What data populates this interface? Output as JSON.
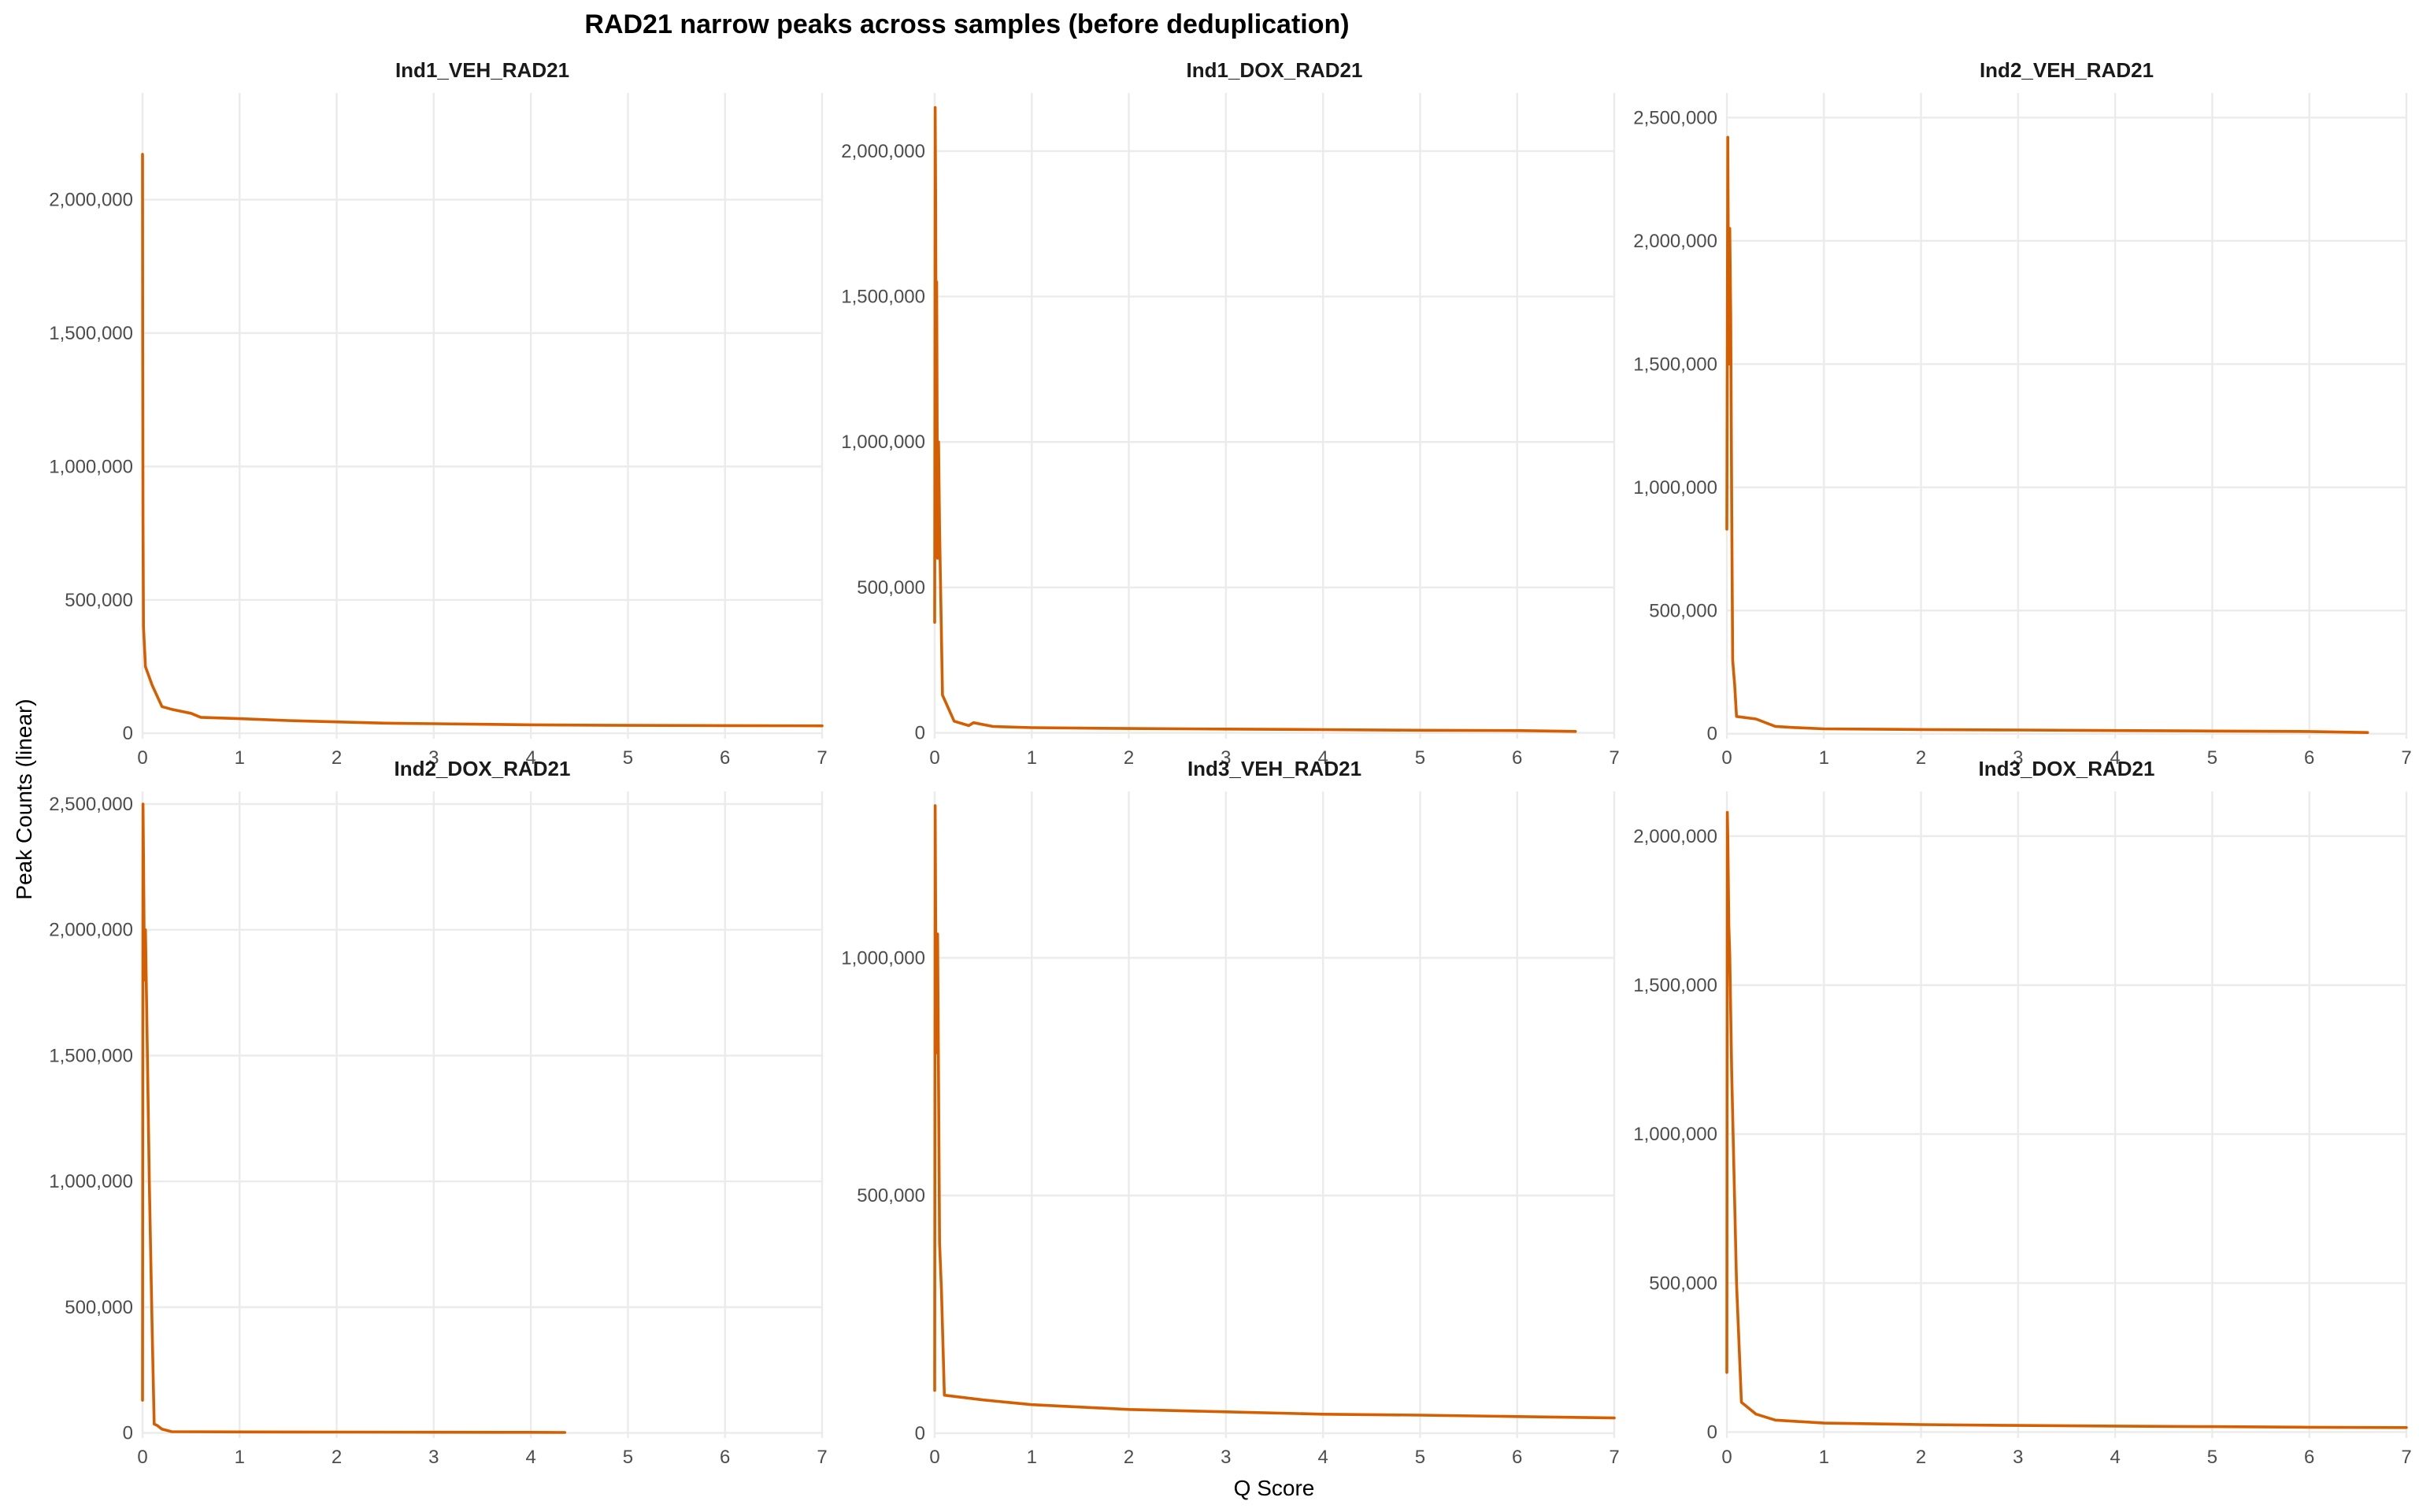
{
  "chart_data": {
    "type": "line",
    "title": "RAD21 narrow peaks across samples (before deduplication)",
    "xlabel": "Q Score",
    "ylabel": "Peak Counts (linear)",
    "line_color": "#D55E00",
    "grid": true,
    "x_ticks": [
      0,
      1,
      2,
      3,
      4,
      5,
      6,
      7
    ],
    "xlim": [
      0,
      7
    ],
    "panels": [
      {
        "name": "Ind1_VEH_RAD21",
        "ylim": [
          -20000,
          2400000
        ],
        "y_ticks": [
          0,
          500000,
          1000000,
          1500000,
          2000000
        ],
        "y_tick_labels": [
          "0",
          "500,000",
          "1,000,000",
          "1,500,000",
          "2,000,000"
        ],
        "x": [
          0,
          0.002,
          0.005,
          0.01,
          0.03,
          0.1,
          0.2,
          0.3,
          0.5,
          0.6,
          1.0,
          1.5,
          2.0,
          2.5,
          3.0,
          3.5,
          4.0,
          5.0,
          6.0,
          7.0
        ],
        "y": [
          2170000,
          1500000,
          800000,
          400000,
          250000,
          180000,
          100000,
          90000,
          75000,
          60000,
          55000,
          48000,
          43000,
          38000,
          36000,
          34000,
          32000,
          30000,
          29000,
          28000
        ]
      },
      {
        "name": "Ind1_DOX_RAD21",
        "ylim": [
          -20000,
          2200000
        ],
        "y_ticks": [
          0,
          500000,
          1000000,
          1500000,
          2000000
        ],
        "y_tick_labels": [
          "0",
          "500,000",
          "1,000,000",
          "1,500,000",
          "2,000,000"
        ],
        "x": [
          0,
          0.005,
          0.01,
          0.015,
          0.02,
          0.03,
          0.04,
          0.05,
          0.08,
          0.2,
          0.35,
          0.4,
          0.6,
          1.0,
          2.0,
          3.0,
          4.0,
          5.0,
          6.0,
          6.6
        ],
        "y": [
          380000,
          2150000,
          1850000,
          1300000,
          1550000,
          600000,
          1000000,
          700000,
          130000,
          40000,
          25000,
          35000,
          22000,
          18000,
          15000,
          13000,
          11000,
          9000,
          8000,
          5000
        ]
      },
      {
        "name": "Ind2_VEH_RAD21",
        "ylim": [
          -20000,
          2600000
        ],
        "y_ticks": [
          0,
          500000,
          1000000,
          1500000,
          2000000,
          2500000
        ],
        "y_tick_labels": [
          "0",
          "500,000",
          "1,000,000",
          "1,500,000",
          "2,000,000",
          "2,500,000"
        ],
        "x": [
          0,
          0.01,
          0.02,
          0.03,
          0.04,
          0.05,
          0.06,
          0.07,
          0.08,
          0.1,
          0.3,
          0.5,
          0.7,
          1.0,
          2.0,
          3.0,
          4.0,
          5.0,
          6.0,
          6.6
        ],
        "y": [
          830000,
          2420000,
          1500000,
          2050000,
          1700000,
          900000,
          300000,
          250000,
          200000,
          70000,
          60000,
          30000,
          25000,
          20000,
          17000,
          15000,
          13000,
          11000,
          9000,
          5000
        ]
      },
      {
        "name": "Ind2_DOX_RAD21",
        "ylim": [
          -20000,
          2550000
        ],
        "y_ticks": [
          0,
          500000,
          1000000,
          1500000,
          2000000,
          2500000
        ],
        "y_tick_labels": [
          "0",
          "500,000",
          "1,000,000",
          "1,500,000",
          "2,000,000",
          "2,500,000"
        ],
        "x": [
          0,
          0.005,
          0.01,
          0.02,
          0.03,
          0.05,
          0.07,
          0.1,
          0.12,
          0.15,
          0.2,
          0.3,
          1.0,
          2.0,
          3.0,
          4.0,
          4.35
        ],
        "y": [
          130000,
          2500000,
          2300000,
          1800000,
          2000000,
          1500000,
          1000000,
          400000,
          35000,
          30000,
          15000,
          5000,
          4000,
          3500,
          3000,
          2500,
          2000
        ]
      },
      {
        "name": "Ind3_VEH_RAD21",
        "ylim": [
          -10000,
          1350000
        ],
        "y_ticks": [
          0,
          500000,
          1000000
        ],
        "y_tick_labels": [
          "0",
          "500,000",
          "1,000,000"
        ],
        "x": [
          0,
          0.005,
          0.01,
          0.02,
          0.03,
          0.05,
          0.07,
          0.1,
          0.5,
          1.0,
          2.0,
          3.0,
          4.0,
          5.0,
          6.0,
          7.0
        ],
        "y": [
          90000,
          1320000,
          1100000,
          800000,
          1050000,
          400000,
          300000,
          80000,
          70000,
          60000,
          50000,
          45000,
          40000,
          38000,
          35000,
          32000
        ]
      },
      {
        "name": "Ind3_DOX_RAD21",
        "ylim": [
          -20000,
          2150000
        ],
        "y_ticks": [
          0,
          500000,
          1000000,
          1500000,
          2000000
        ],
        "y_tick_labels": [
          "0",
          "500,000",
          "1,000,000",
          "1,500,000",
          "2,000,000"
        ],
        "x": [
          0,
          0.005,
          0.01,
          0.02,
          0.03,
          0.05,
          0.1,
          0.15,
          0.3,
          0.5,
          1.0,
          2.0,
          3.0,
          4.0,
          5.0,
          6.0,
          7.0
        ],
        "y": [
          200000,
          2080000,
          2000000,
          1700000,
          1600000,
          1200000,
          500000,
          100000,
          60000,
          40000,
          30000,
          25000,
          22000,
          20000,
          18000,
          16000,
          15000
        ]
      }
    ]
  }
}
